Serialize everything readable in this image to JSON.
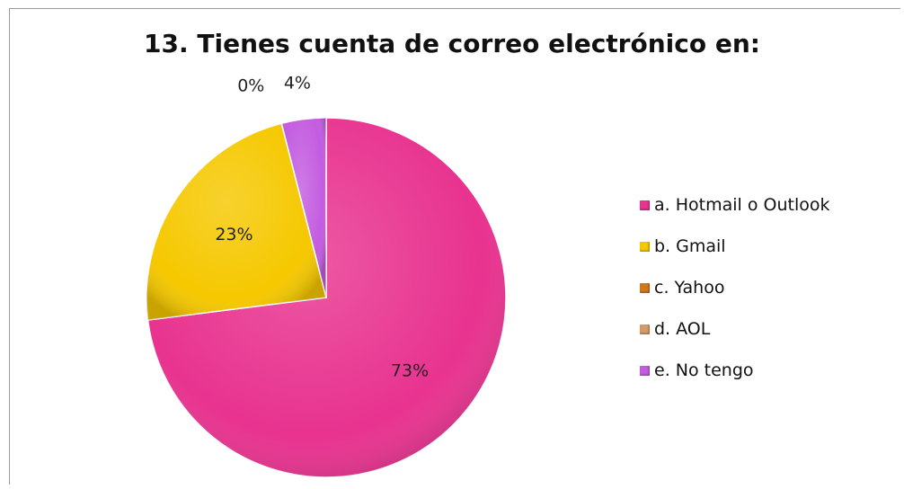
{
  "chart_data": {
    "type": "pie",
    "title": "13. Tienes cuenta de correo electrónico en:",
    "categories": [
      "a. Hotmail o Outlook",
      "b. Gmail",
      "c. Yahoo",
      "d. AOL",
      "e. No tengo"
    ],
    "values": [
      73,
      23,
      0,
      0,
      4
    ],
    "labels": [
      "73%",
      "23%",
      "",
      "0%",
      "4%"
    ],
    "colors": [
      "#e8338f",
      "#f5c800",
      "#d4761f",
      "#d69a6a",
      "#c35ce0"
    ],
    "legend_position": "right"
  }
}
